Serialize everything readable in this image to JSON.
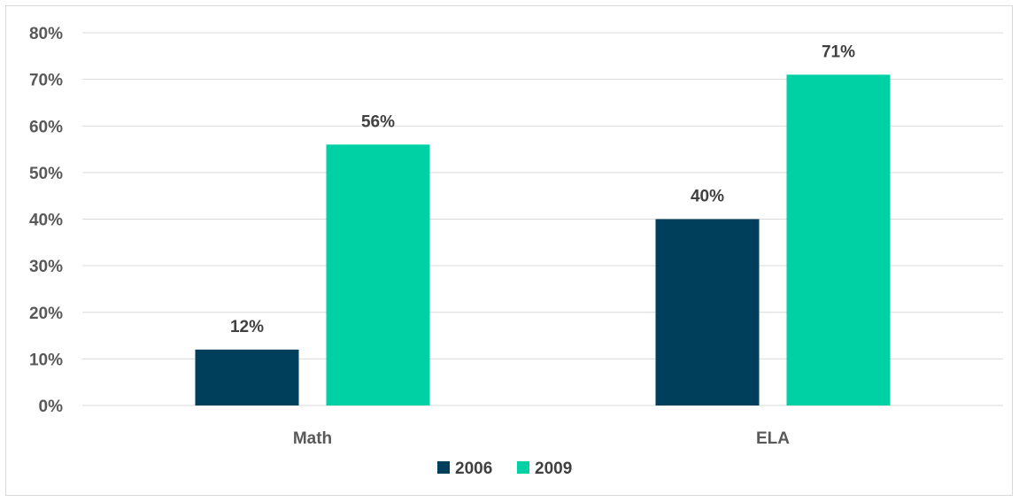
{
  "chart_data": {
    "type": "bar",
    "categories": [
      "Math",
      "ELA"
    ],
    "series": [
      {
        "name": "2006",
        "values": [
          12,
          40
        ],
        "color": "#003f5c"
      },
      {
        "name": "2009",
        "values": [
          56,
          71
        ],
        "color": "#00d1a4"
      }
    ],
    "y_ticks": [
      "0%",
      "10%",
      "20%",
      "30%",
      "40%",
      "50%",
      "60%",
      "70%",
      "80%"
    ],
    "data_labels": [
      [
        "12%",
        "40%"
      ],
      [
        "56%",
        "71%"
      ]
    ],
    "ylim": [
      0,
      80
    ],
    "grid": true,
    "legend_position": "bottom",
    "title": "",
    "xlabel": "",
    "ylabel": ""
  }
}
